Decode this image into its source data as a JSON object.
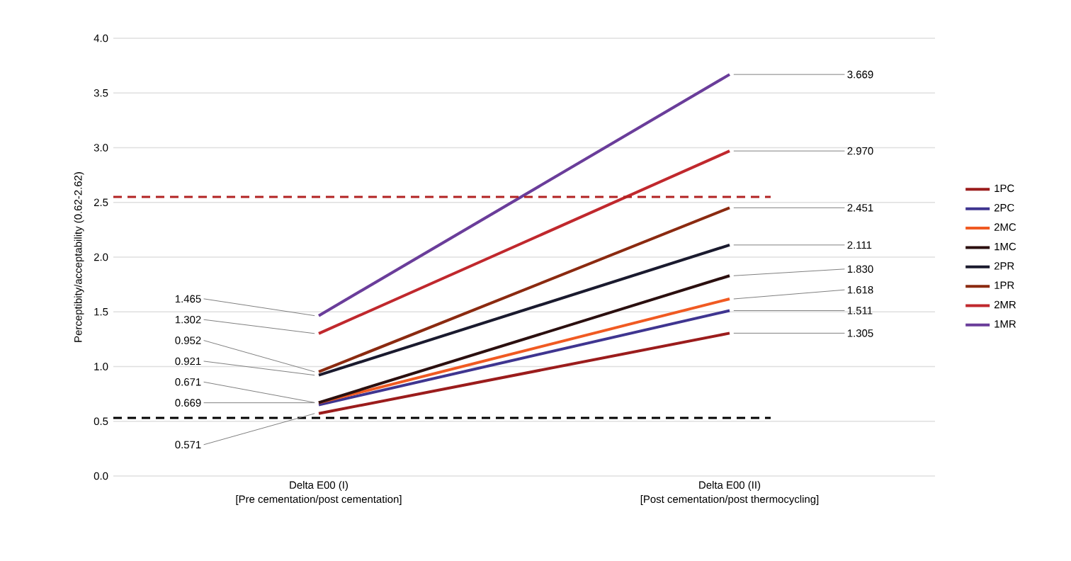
{
  "chart_data": {
    "type": "line",
    "ylabel": "Perceptibity/acceptability (0.62-2.62)",
    "categories": [
      "Delta E00 (I)\n[Pre cementation/post cementation]",
      "Delta E00 (II)\n[Post cementation/post thermocycling]"
    ],
    "series": [
      {
        "name": "1PC",
        "color": "#9b1c1c",
        "values": [
          0.571,
          1.305
        ],
        "value_labels": [
          "0.571",
          "1.305"
        ]
      },
      {
        "name": "2PC",
        "color": "#3f3590",
        "values": [
          0.65,
          1.511
        ],
        "value_labels": [
          null,
          "1.511"
        ]
      },
      {
        "name": "2MC",
        "color": "#f05a22",
        "values": [
          0.669,
          1.618
        ],
        "value_labels": [
          "0.669",
          "1.618"
        ]
      },
      {
        "name": "1MC",
        "color": "#2b0f0f",
        "values": [
          0.671,
          1.83
        ],
        "value_labels": [
          "0.671",
          "1.830"
        ]
      },
      {
        "name": "2PR",
        "color": "#1a1a2e",
        "values": [
          0.921,
          2.111
        ],
        "value_labels": [
          "0.921",
          "2.111"
        ]
      },
      {
        "name": "1PR",
        "color": "#8b2a10",
        "values": [
          0.952,
          2.451
        ],
        "value_labels": [
          "0.952",
          "2.451"
        ]
      },
      {
        "name": "2MR",
        "color": "#c0282d",
        "values": [
          1.302,
          2.97
        ],
        "value_labels": [
          "1.302",
          "2.970"
        ]
      },
      {
        "name": "1MR",
        "color": "#6a3d9a",
        "values": [
          1.465,
          3.669
        ],
        "value_labels": [
          "1.465",
          "3.669"
        ]
      }
    ],
    "ylim": [
      0,
      4
    ],
    "yticks": [
      {
        "value": 0,
        "label": "0.0"
      },
      {
        "value": 0.5,
        "label": "0.5"
      },
      {
        "value": 1,
        "label": "1.0"
      },
      {
        "value": 1.5,
        "label": "1.5"
      },
      {
        "value": 2,
        "label": "2.0"
      },
      {
        "value": 2.5,
        "label": "2.5"
      },
      {
        "value": 3,
        "label": "3.0"
      },
      {
        "value": 3.5,
        "label": "3.5"
      },
      {
        "value": 4,
        "label": "4.0"
      }
    ],
    "ref_lines": [
      {
        "axis": "y",
        "value": 2.55,
        "color": "#b22222",
        "line_style": "dashed"
      },
      {
        "axis": "y",
        "value": 0.53,
        "color": "#000000",
        "line_style": "dashed"
      }
    ],
    "grid": "y",
    "legend": "right",
    "marker": "none",
    "line_style": "solid"
  }
}
